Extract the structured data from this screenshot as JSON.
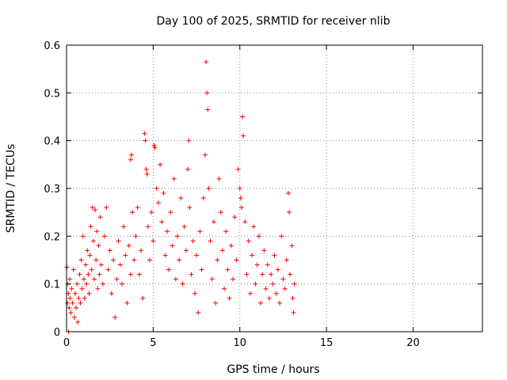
{
  "chart_data": {
    "type": "scatter",
    "title": "Day 100 of 2025, SRMTID for receiver nlib",
    "xlabel": "GPS time / hours",
    "ylabel": "SRMTID / TECUs",
    "xlim": [
      0,
      24
    ],
    "ylim": [
      0,
      0.6
    ],
    "xticks": [
      0,
      5,
      10,
      15,
      20
    ],
    "yticks": [
      0,
      0.1,
      0.2,
      0.3,
      0.4,
      0.5,
      0.6
    ],
    "xtick_labels": [
      "0",
      "5",
      "10",
      "15",
      "20"
    ],
    "ytick_labels": [
      "0",
      "0.1",
      "0.2",
      "0.3",
      "0.4",
      "0.5",
      "0.6"
    ],
    "grid": true,
    "marker": "+",
    "marker_color": "#ff0000",
    "series": [
      {
        "name": "SRMTID",
        "points": [
          [
            0.02,
            0.135
          ],
          [
            0.05,
            0.06
          ],
          [
            0.08,
            0.1
          ],
          [
            0.1,
            0.08
          ],
          [
            0.12,
            0.0
          ],
          [
            0.15,
            0.05
          ],
          [
            0.18,
            0.11
          ],
          [
            0.2,
            0.07
          ],
          [
            0.25,
            0.04
          ],
          [
            0.3,
            0.09
          ],
          [
            0.35,
            0.06
          ],
          [
            0.4,
            0.13
          ],
          [
            0.45,
            0.03
          ],
          [
            0.5,
            0.08
          ],
          [
            0.55,
            0.05
          ],
          [
            0.6,
            0.1
          ],
          [
            0.65,
            0.02
          ],
          [
            0.7,
            0.07
          ],
          [
            0.75,
            0.12
          ],
          [
            0.8,
            0.06
          ],
          [
            0.85,
            0.15
          ],
          [
            0.9,
            0.09
          ],
          [
            0.95,
            0.2
          ],
          [
            1.0,
            0.11
          ],
          [
            1.05,
            0.07
          ],
          [
            1.1,
            0.14
          ],
          [
            1.15,
            0.1
          ],
          [
            1.2,
            0.17
          ],
          [
            1.25,
            0.12
          ],
          [
            1.3,
            0.08
          ],
          [
            1.35,
            0.16
          ],
          [
            1.4,
            0.22
          ],
          [
            1.45,
            0.13
          ],
          [
            1.5,
            0.26
          ],
          [
            1.55,
            0.19
          ],
          [
            1.6,
            0.11
          ],
          [
            1.65,
            0.255
          ],
          [
            1.7,
            0.15
          ],
          [
            1.75,
            0.21
          ],
          [
            1.8,
            0.09
          ],
          [
            1.85,
            0.18
          ],
          [
            1.9,
            0.12
          ],
          [
            1.95,
            0.24
          ],
          [
            2.0,
            0.14
          ],
          [
            2.1,
            0.1
          ],
          [
            2.2,
            0.2
          ],
          [
            2.3,
            0.26
          ],
          [
            2.4,
            0.13
          ],
          [
            2.5,
            0.17
          ],
          [
            2.6,
            0.08
          ],
          [
            2.7,
            0.15
          ],
          [
            2.8,
            0.03
          ],
          [
            2.9,
            0.11
          ],
          [
            3.0,
            0.19
          ],
          [
            3.1,
            0.14
          ],
          [
            3.2,
            0.1
          ],
          [
            3.3,
            0.22
          ],
          [
            3.4,
            0.16
          ],
          [
            3.5,
            0.06
          ],
          [
            3.6,
            0.18
          ],
          [
            3.7,
            0.12
          ],
          [
            3.8,
            0.25
          ],
          [
            3.9,
            0.15
          ],
          [
            4.0,
            0.2
          ],
          [
            3.7,
            0.36
          ],
          [
            3.75,
            0.37
          ],
          [
            4.1,
            0.26
          ],
          [
            4.2,
            0.12
          ],
          [
            4.3,
            0.17
          ],
          [
            4.4,
            0.07
          ],
          [
            4.5,
            0.415
          ],
          [
            4.55,
            0.4
          ],
          [
            4.6,
            0.34
          ],
          [
            4.65,
            0.33
          ],
          [
            4.7,
            0.22
          ],
          [
            4.8,
            0.15
          ],
          [
            4.9,
            0.25
          ],
          [
            5.0,
            0.19
          ],
          [
            5.05,
            0.39
          ],
          [
            5.1,
            0.385
          ],
          [
            5.2,
            0.3
          ],
          [
            5.3,
            0.27
          ],
          [
            5.4,
            0.35
          ],
          [
            5.5,
            0.23
          ],
          [
            5.6,
            0.29
          ],
          [
            5.7,
            0.16
          ],
          [
            5.8,
            0.21
          ],
          [
            5.9,
            0.13
          ],
          [
            6.0,
            0.25
          ],
          [
            6.1,
            0.18
          ],
          [
            6.2,
            0.32
          ],
          [
            6.3,
            0.11
          ],
          [
            6.4,
            0.2
          ],
          [
            6.5,
            0.15
          ],
          [
            6.6,
            0.28
          ],
          [
            6.7,
            0.1
          ],
          [
            6.8,
            0.22
          ],
          [
            6.9,
            0.17
          ],
          [
            7.0,
            0.34
          ],
          [
            7.05,
            0.4
          ],
          [
            7.1,
            0.26
          ],
          [
            7.2,
            0.12
          ],
          [
            7.3,
            0.19
          ],
          [
            7.4,
            0.08
          ],
          [
            7.5,
            0.16
          ],
          [
            7.6,
            0.04
          ],
          [
            7.7,
            0.21
          ],
          [
            7.8,
            0.13
          ],
          [
            7.9,
            0.28
          ],
          [
            8.0,
            0.37
          ],
          [
            8.05,
            0.565
          ],
          [
            8.1,
            0.5
          ],
          [
            8.15,
            0.465
          ],
          [
            8.2,
            0.3
          ],
          [
            8.3,
            0.19
          ],
          [
            8.4,
            0.11
          ],
          [
            8.5,
            0.23
          ],
          [
            8.6,
            0.06
          ],
          [
            8.7,
            0.15
          ],
          [
            8.8,
            0.32
          ],
          [
            8.9,
            0.25
          ],
          [
            9.0,
            0.17
          ],
          [
            9.1,
            0.09
          ],
          [
            9.2,
            0.21
          ],
          [
            9.3,
            0.13
          ],
          [
            9.4,
            0.07
          ],
          [
            9.5,
            0.18
          ],
          [
            9.6,
            0.11
          ],
          [
            9.7,
            0.24
          ],
          [
            9.8,
            0.15
          ],
          [
            9.9,
            0.34
          ],
          [
            10.0,
            0.3
          ],
          [
            10.05,
            0.28
          ],
          [
            10.1,
            0.26
          ],
          [
            10.15,
            0.45
          ],
          [
            10.2,
            0.41
          ],
          [
            10.3,
            0.23
          ],
          [
            10.4,
            0.12
          ],
          [
            10.5,
            0.19
          ],
          [
            10.6,
            0.08
          ],
          [
            10.7,
            0.16
          ],
          [
            10.8,
            0.22
          ],
          [
            10.9,
            0.1
          ],
          [
            11.0,
            0.14
          ],
          [
            11.1,
            0.2
          ],
          [
            11.2,
            0.06
          ],
          [
            11.3,
            0.12
          ],
          [
            11.4,
            0.17
          ],
          [
            11.5,
            0.09
          ],
          [
            11.6,
            0.14
          ],
          [
            11.7,
            0.07
          ],
          [
            11.8,
            0.12
          ],
          [
            11.9,
            0.1
          ],
          [
            12.0,
            0.16
          ],
          [
            12.1,
            0.08
          ],
          [
            12.2,
            0.13
          ],
          [
            12.3,
            0.06
          ],
          [
            12.4,
            0.2
          ],
          [
            12.5,
            0.11
          ],
          [
            12.6,
            0.09
          ],
          [
            12.7,
            0.15
          ],
          [
            12.8,
            0.29
          ],
          [
            12.85,
            0.25
          ],
          [
            12.9,
            0.12
          ],
          [
            13.0,
            0.18
          ],
          [
            13.05,
            0.07
          ],
          [
            13.1,
            0.04
          ],
          [
            13.15,
            0.1
          ]
        ]
      }
    ]
  }
}
